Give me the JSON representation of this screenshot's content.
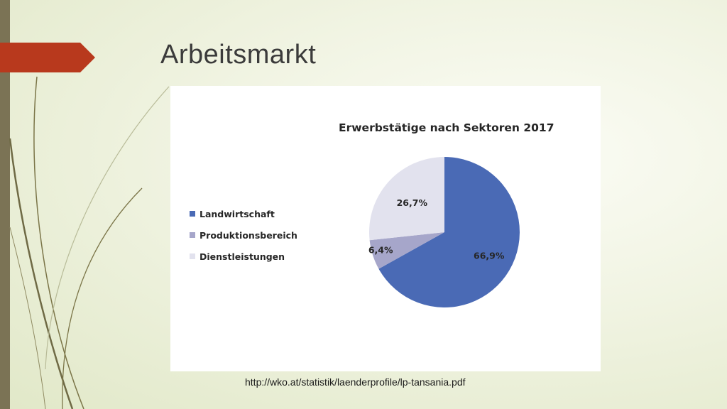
{
  "slide": {
    "title": "Arbeitsmarkt",
    "source_url": "http://wko.at/statistik/laenderprofile/lp-tansania.pdf",
    "accent_color": "#b8391d",
    "stripe_color": "#7b7355"
  },
  "chart_data": {
    "type": "pie",
    "title": "Erwerbstätige nach Sektoren 2017",
    "legend_position": "left",
    "slices": [
      {
        "name": "Landwirtschaft",
        "value": 66.9,
        "label": "66,9%",
        "color": "#4a6ab5"
      },
      {
        "name": "Produktionsbereich",
        "value": 6.4,
        "label": "6,4%",
        "color": "#a6a6ca"
      },
      {
        "name": "Dienstleistungen",
        "value": 26.7,
        "label": "26,7%",
        "color": "#e2e2ee"
      }
    ]
  }
}
